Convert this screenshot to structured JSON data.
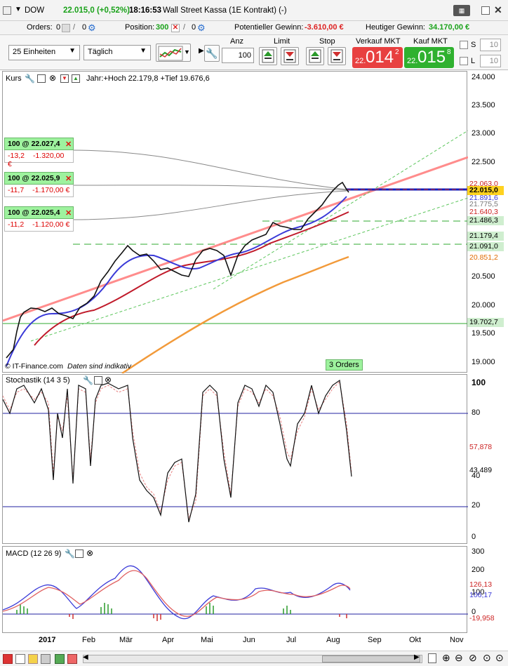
{
  "titlebar": {
    "instrument": "DOW",
    "price_change": "22.015,0 (+0,52%)",
    "time": "18:16:53",
    "description": "Wall Street Kassa (1E Kontrakt) (-)"
  },
  "orders_bar": {
    "orders_label": "Orders:",
    "orders_value": "0",
    "orders_value2": "0",
    "position_label": "Position:",
    "position_value": "300",
    "position_value2": "0",
    "pot_gain_label": "Potentieller Gewinn:",
    "pot_gain_value": "-3.610,00 €",
    "today_gain_label": "Heutiger Gewinn:",
    "today_gain_value": "34.170,00 €"
  },
  "toolbar": {
    "units_select": "25 Einheiten",
    "period_select": "Täglich",
    "anz_label": "Anz",
    "anz_value": "100",
    "limit_label": "Limit",
    "stop_label": "Stop",
    "sell_label": "Verkauf MKT",
    "sell_small": "22.",
    "sell_big": "014",
    "sell_sup": "2",
    "buy_label": "Kauf MKT",
    "buy_small": "22.",
    "buy_big": "015",
    "buy_sup": "8",
    "s_label": "S",
    "s_value": "10",
    "l_label": "L",
    "l_value": "10"
  },
  "price_panel": {
    "title": "Kurs",
    "info": "Jahr:+Hoch 22.179,8 +Tief 19.676,6",
    "copyright": "© IT-Finance.com",
    "disclaimer": "Daten sind indikativ",
    "orders_badge": "3 Orders",
    "y_ticks": [
      "24.000",
      "23.500",
      "23.000",
      "22.500",
      "20.500",
      "20.000",
      "19.500",
      "19.000"
    ],
    "price_labels": [
      {
        "text": "22.063,0",
        "color": "#cc2222",
        "bg": "#ffffff"
      },
      {
        "text": "22.015,0",
        "color": "#000000",
        "bg": "#ffd21f"
      },
      {
        "text": "21.891,6",
        "color": "#3a3ad8",
        "bg": "#ffffff"
      },
      {
        "text": "21.775,5",
        "color": "#777777",
        "bg": "#ffffff"
      },
      {
        "text": "21.640,3",
        "color": "#cc2222",
        "bg": "#ffffff"
      },
      {
        "text": "21.486,3",
        "color": "#000000",
        "bg": "#cfeecf"
      },
      {
        "text": "21.179,4",
        "color": "#000000",
        "bg": "#cfeecf"
      },
      {
        "text": "21.091,0",
        "color": "#000000",
        "bg": "#cfeecf"
      },
      {
        "text": "20.851,2",
        "color": "#e06a00",
        "bg": "#ffffff"
      },
      {
        "text": "19.702,7",
        "color": "#000000",
        "bg": "#cfeecf"
      }
    ],
    "orders": [
      {
        "head": "100 @ 22.027,4",
        "pts": "-13,2",
        "eur": "-1.320,00 €"
      },
      {
        "head": "100 @ 22.025,9",
        "pts": "-11,7",
        "eur": "-1.170,00 €"
      },
      {
        "head": "100 @ 22.025,4",
        "pts": "-11,2",
        "eur": "-1.120,00 €"
      }
    ]
  },
  "stoch_panel": {
    "title": "Stochastik (14 3 5)",
    "y_ticks": [
      "100",
      "80",
      "40",
      "20",
      "0"
    ],
    "value1": "57,878",
    "value2": "43,489"
  },
  "macd_panel": {
    "title": "MACD (12 26 9)",
    "y_ticks": [
      "300",
      "200",
      "100",
      "0"
    ],
    "value1": "126,13",
    "value2": "106,17",
    "value3": "-19,958"
  },
  "x_axis": [
    "2017",
    "Feb",
    "Mär",
    "Apr",
    "Mai",
    "Jun",
    "Jul",
    "Aug",
    "Sep",
    "Okt",
    "Nov"
  ],
  "colors": {
    "sell_bg": "#e84040",
    "buy_bg": "#2fb12f",
    "ma_blue": "#3a3ad8",
    "ma_red": "#c01a2a",
    "ma_orange": "#f29a3a",
    "trend_red": "#ff7070",
    "trend_green": "#3cb83c"
  }
}
